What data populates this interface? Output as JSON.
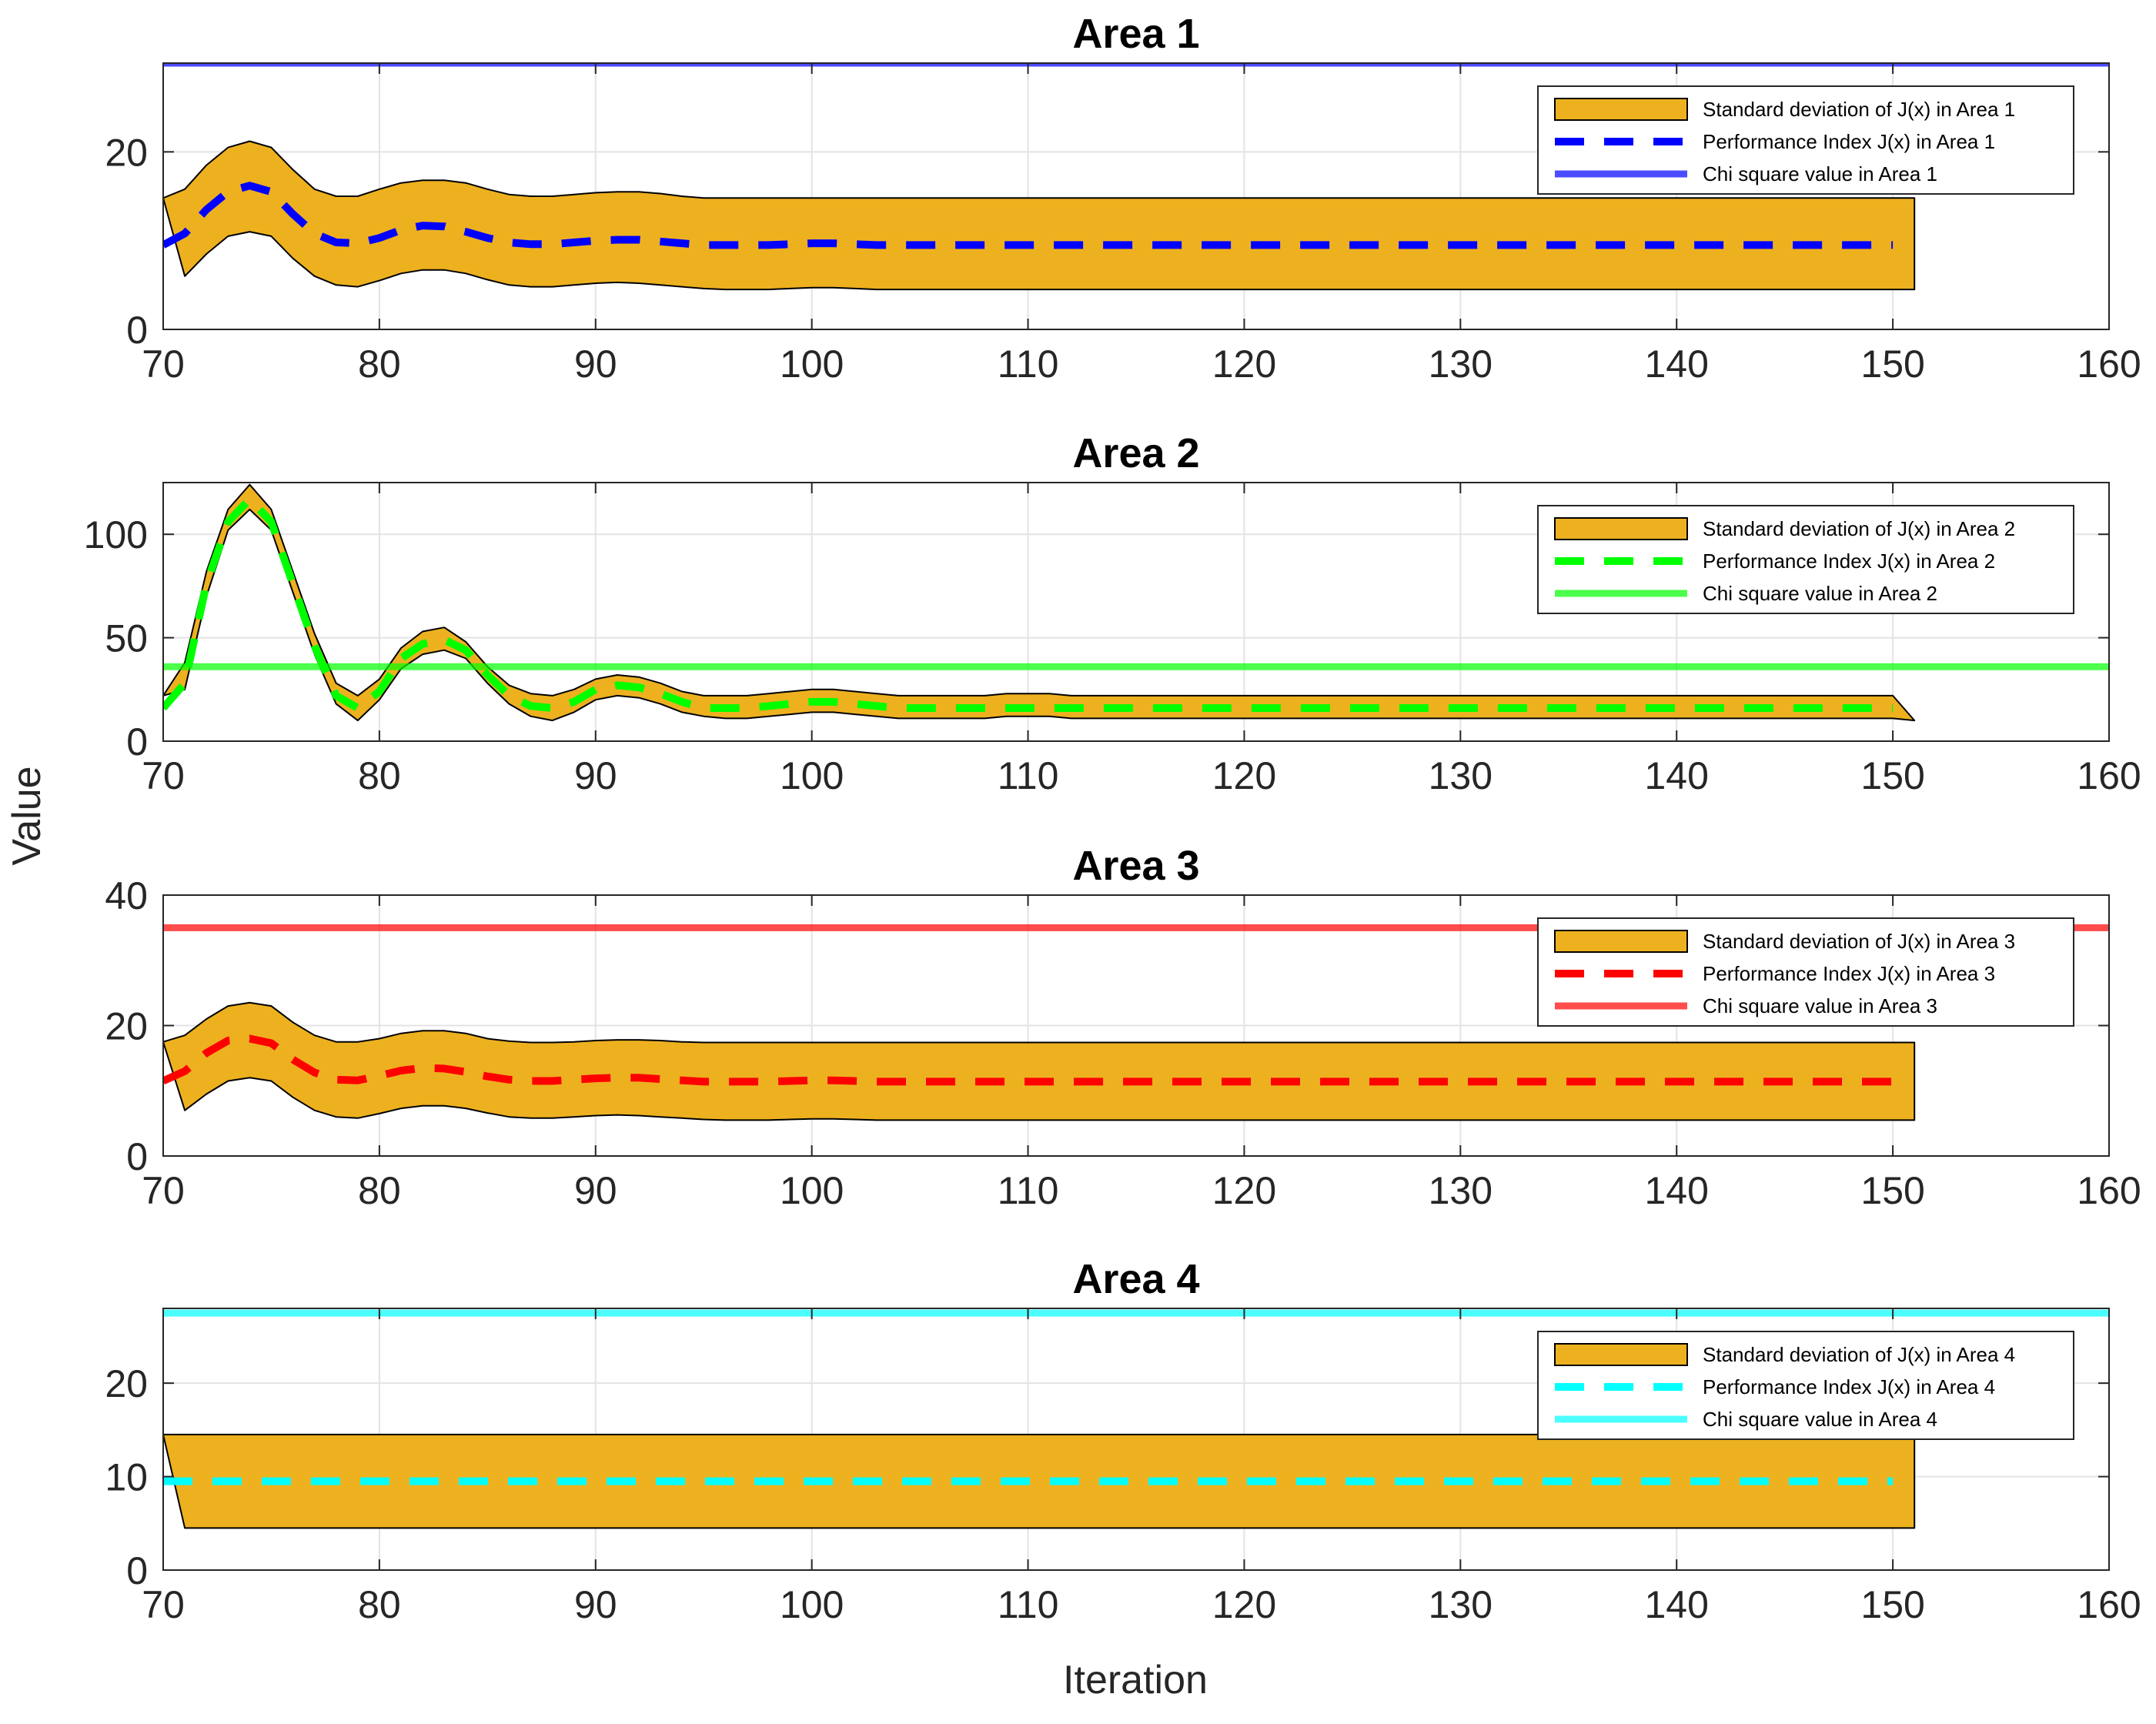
{
  "figure": {
    "ylabel": "Value",
    "xlabel": "Iteration"
  },
  "chart_data": [
    {
      "type": "line",
      "title": "Area 1",
      "xlim": [
        70,
        160
      ],
      "ylim": [
        0,
        30
      ],
      "xticks": [
        "70",
        "80",
        "90",
        "100",
        "110",
        "120",
        "130",
        "140",
        "150",
        "160"
      ],
      "yticks": [
        "0",
        "20"
      ],
      "ytick_values": [
        0,
        20
      ],
      "color": "#0000ff",
      "legend": [
        "Standard deviation of J(x) in Area 1",
        "Performance Index J(x) in Area 1",
        "Chi square value in Area 1"
      ],
      "legend_position": "top-right",
      "chi_square": 30,
      "band_x": [
        70,
        71,
        72,
        73,
        74,
        75,
        76,
        77,
        78,
        79,
        80,
        81,
        82,
        83,
        84,
        85,
        86,
        87,
        88,
        89,
        90,
        91,
        92,
        93,
        94,
        95,
        96,
        97,
        98,
        99,
        100,
        101,
        102,
        103,
        104,
        105,
        150,
        151
      ],
      "band_upper": [
        14.8,
        15.8,
        18.5,
        20.5,
        21.2,
        20.5,
        18.0,
        15.8,
        15.0,
        15.0,
        15.8,
        16.5,
        16.8,
        16.8,
        16.5,
        15.8,
        15.2,
        15.0,
        15.0,
        15.2,
        15.4,
        15.5,
        15.5,
        15.3,
        15.0,
        14.8,
        14.8,
        14.8,
        14.8,
        14.8,
        14.8,
        14.8,
        14.8,
        14.8,
        14.8,
        14.8,
        14.8,
        14.8
      ],
      "band_lower": [
        14.8,
        6.0,
        8.5,
        10.5,
        11.0,
        10.5,
        8.0,
        6.0,
        5.0,
        4.8,
        5.5,
        6.3,
        6.7,
        6.7,
        6.3,
        5.6,
        5.0,
        4.8,
        4.8,
        5.0,
        5.2,
        5.3,
        5.2,
        5.0,
        4.8,
        4.6,
        4.5,
        4.5,
        4.5,
        4.6,
        4.7,
        4.7,
        4.6,
        4.5,
        4.5,
        4.5,
        4.5,
        4.5
      ],
      "line_x": [
        70,
        71,
        72,
        73,
        74,
        75,
        76,
        77,
        78,
        79,
        80,
        81,
        82,
        83,
        84,
        85,
        86,
        87,
        88,
        89,
        90,
        91,
        92,
        93,
        94,
        95,
        96,
        97,
        98,
        99,
        100,
        101,
        102,
        103,
        104,
        105,
        150
      ],
      "line_y": [
        9.5,
        10.8,
        13.5,
        15.5,
        16.2,
        15.5,
        13.0,
        10.8,
        9.8,
        9.7,
        10.3,
        11.2,
        11.7,
        11.6,
        11.0,
        10.3,
        9.8,
        9.6,
        9.6,
        9.8,
        10.0,
        10.1,
        10.1,
        9.9,
        9.7,
        9.5,
        9.5,
        9.5,
        9.5,
        9.6,
        9.7,
        9.7,
        9.6,
        9.5,
        9.5,
        9.5,
        9.5
      ]
    },
    {
      "type": "line",
      "title": "Area 2",
      "xlim": [
        70,
        160
      ],
      "ylim": [
        0,
        125
      ],
      "xticks": [
        "70",
        "80",
        "90",
        "100",
        "110",
        "120",
        "130",
        "140",
        "150",
        "160"
      ],
      "yticks": [
        "0",
        "50",
        "100"
      ],
      "ytick_values": [
        0,
        50,
        100
      ],
      "color": "#00ff00",
      "legend": [
        "Standard deviation of J(x) in Area 2",
        "Performance Index J(x) in Area 2",
        "Chi square value in Area 2"
      ],
      "legend_position": "top-right",
      "chi_square": 36,
      "band_x": [
        70,
        71,
        72,
        73,
        74,
        75,
        76,
        77,
        78,
        79,
        80,
        81,
        82,
        83,
        84,
        85,
        86,
        87,
        88,
        89,
        90,
        91,
        92,
        93,
        94,
        95,
        96,
        97,
        98,
        99,
        100,
        101,
        102,
        103,
        104,
        105,
        106,
        107,
        108,
        109,
        110,
        111,
        112,
        150,
        151
      ],
      "band_upper": [
        22,
        38,
        82,
        112,
        124,
        112,
        82,
        52,
        28,
        22,
        30,
        45,
        53,
        55,
        48,
        36,
        27,
        23,
        22,
        25,
        30,
        32,
        31,
        28,
        24,
        22,
        22,
        22,
        23,
        24,
        25,
        25,
        24,
        23,
        22,
        22,
        22,
        22,
        22,
        23,
        23,
        23,
        22,
        22,
        10
      ],
      "band_lower": [
        22,
        25,
        70,
        102,
        112,
        102,
        72,
        42,
        18,
        10,
        20,
        35,
        42,
        44,
        40,
        28,
        18,
        12,
        10,
        14,
        20,
        22,
        21,
        18,
        14,
        12,
        11,
        11,
        12,
        13,
        14,
        14,
        13,
        12,
        11,
        11,
        11,
        11,
        11,
        12,
        12,
        12,
        11,
        11,
        10
      ],
      "line_x": [
        70,
        71,
        72,
        73,
        74,
        75,
        76,
        77,
        78,
        79,
        80,
        81,
        82,
        83,
        84,
        85,
        86,
        87,
        88,
        89,
        90,
        91,
        92,
        93,
        94,
        95,
        96,
        97,
        98,
        99,
        100,
        101,
        102,
        103,
        104,
        105,
        150
      ],
      "line_y": [
        16,
        28,
        76,
        106,
        117,
        106,
        76,
        46,
        22,
        16,
        24,
        40,
        47,
        49,
        44,
        32,
        22,
        17,
        16,
        19,
        25,
        27,
        26,
        23,
        19,
        16,
        16,
        16,
        17,
        18,
        19,
        19,
        18,
        17,
        16,
        16,
        16
      ]
    },
    {
      "type": "line",
      "title": "Area 3",
      "xlim": [
        70,
        160
      ],
      "ylim": [
        0,
        40
      ],
      "xticks": [
        "70",
        "80",
        "90",
        "100",
        "110",
        "120",
        "130",
        "140",
        "150",
        "160"
      ],
      "yticks": [
        "0",
        "20",
        "40"
      ],
      "ytick_values": [
        0,
        20,
        40
      ],
      "color": "#ff0000",
      "legend": [
        "Standard deviation of J(x) in Area 3",
        "Performance Index J(x) in Area 3",
        "Chi square value in Area 3"
      ],
      "legend_position": "top-right",
      "chi_square": 35,
      "band_x": [
        70,
        71,
        72,
        73,
        74,
        75,
        76,
        77,
        78,
        79,
        80,
        81,
        82,
        83,
        84,
        85,
        86,
        87,
        88,
        89,
        90,
        91,
        92,
        93,
        94,
        95,
        96,
        97,
        98,
        99,
        100,
        101,
        102,
        103,
        104,
        105,
        150,
        151
      ],
      "band_upper": [
        17.5,
        18.5,
        21.0,
        23.0,
        23.5,
        23.0,
        20.5,
        18.5,
        17.5,
        17.5,
        18.0,
        18.8,
        19.2,
        19.2,
        18.8,
        18.0,
        17.6,
        17.4,
        17.4,
        17.5,
        17.7,
        17.8,
        17.8,
        17.7,
        17.5,
        17.4,
        17.4,
        17.4,
        17.4,
        17.4,
        17.4,
        17.4,
        17.4,
        17.4,
        17.4,
        17.4,
        17.4,
        17.4
      ],
      "band_lower": [
        17.5,
        7.0,
        9.5,
        11.5,
        12.0,
        11.5,
        9.0,
        7.0,
        6.0,
        5.8,
        6.5,
        7.3,
        7.7,
        7.7,
        7.3,
        6.6,
        6.0,
        5.8,
        5.8,
        6.0,
        6.2,
        6.3,
        6.2,
        6.0,
        5.8,
        5.6,
        5.5,
        5.5,
        5.5,
        5.6,
        5.7,
        5.7,
        5.6,
        5.5,
        5.5,
        5.5,
        5.5,
        5.5
      ],
      "line_x": [
        70,
        71,
        72,
        73,
        74,
        75,
        76,
        77,
        78,
        79,
        80,
        81,
        82,
        83,
        84,
        85,
        86,
        87,
        88,
        89,
        90,
        91,
        92,
        93,
        94,
        95,
        96,
        97,
        98,
        99,
        100,
        101,
        102,
        103,
        104,
        105,
        150
      ],
      "line_y": [
        11.5,
        13.0,
        15.8,
        17.7,
        18.0,
        17.3,
        14.8,
        12.8,
        11.7,
        11.6,
        12.3,
        13.1,
        13.5,
        13.4,
        12.9,
        12.2,
        11.7,
        11.5,
        11.5,
        11.7,
        11.9,
        12.0,
        12.0,
        11.8,
        11.6,
        11.4,
        11.4,
        11.4,
        11.4,
        11.5,
        11.6,
        11.6,
        11.5,
        11.4,
        11.4,
        11.4,
        11.4
      ]
    },
    {
      "type": "line",
      "title": "Area 4",
      "xlim": [
        70,
        160
      ],
      "ylim": [
        0,
        28
      ],
      "xticks": [
        "70",
        "80",
        "90",
        "100",
        "110",
        "120",
        "130",
        "140",
        "150",
        "160"
      ],
      "yticks": [
        "0",
        "10",
        "20"
      ],
      "ytick_values": [
        0,
        10,
        20
      ],
      "color": "#00ffff",
      "legend": [
        "Standard deviation of J(x) in Area 4",
        "Performance Index J(x) in Area 4",
        "Chi square value in Area 4"
      ],
      "legend_position": "top-right",
      "chi_square": 27.5,
      "band_x": [
        70,
        71,
        150,
        151
      ],
      "band_upper": [
        14.5,
        14.5,
        14.5,
        14.5
      ],
      "band_lower": [
        14.5,
        4.5,
        4.5,
        4.5
      ],
      "line_x": [
        70,
        150
      ],
      "line_y": [
        9.5,
        9.5
      ]
    }
  ],
  "colors": {
    "band_fill": "#EDB120",
    "grid": "#e3e3e3",
    "axis": "#262626"
  }
}
